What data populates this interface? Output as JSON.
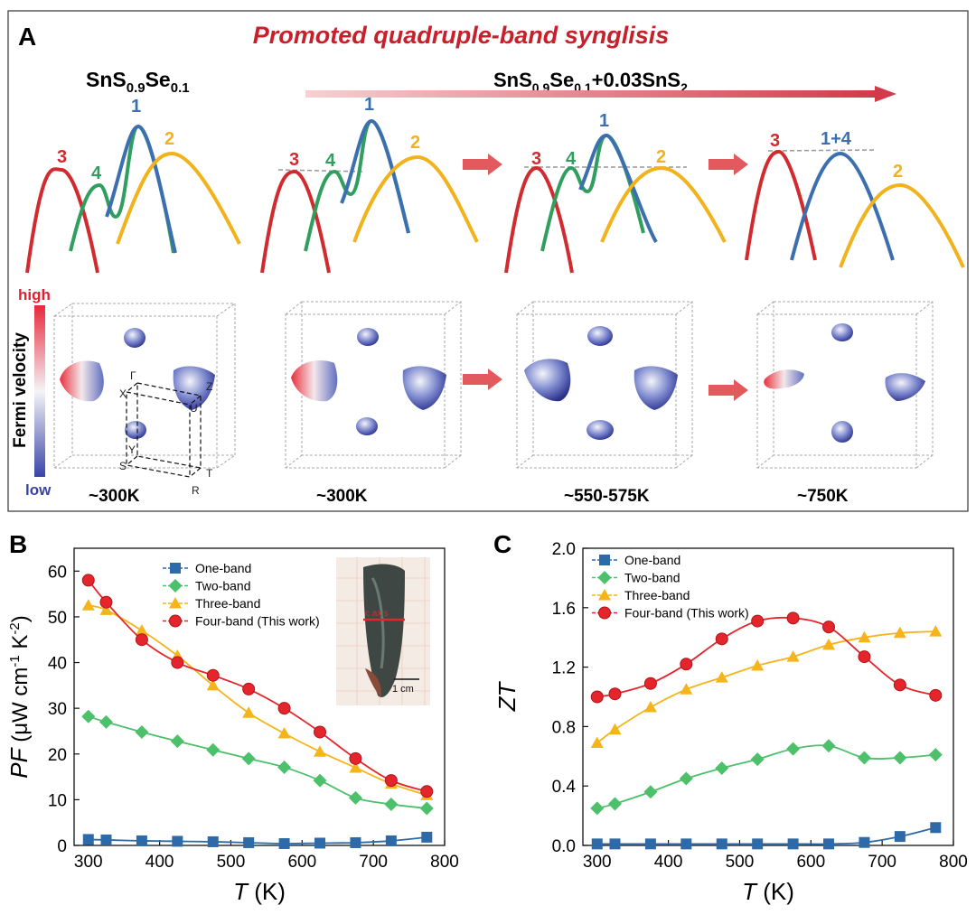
{
  "panel_a": {
    "letter": "A",
    "title": "Promoted quadruple-band synglisis",
    "formula_left": {
      "base": "SnS",
      "sub1": "0.9",
      "mid": "Se",
      "sub2": "0.1"
    },
    "formula_right": {
      "base": "SnS",
      "sub1": "0.9",
      "mid": "Se",
      "sub2": "0.1",
      "tail": "+0.03SnS",
      "sub3": "2"
    },
    "band_labels": {
      "b1": "1",
      "b2": "2",
      "b3": "3",
      "b4": "4",
      "b14": "1+4"
    },
    "colorbar": {
      "label": "Fermi velocity",
      "high": "high",
      "low": "low"
    },
    "bz_labels": {
      "gamma": "Γ",
      "x": "X",
      "z": "Z",
      "u": "U",
      "y": "Y",
      "s": "S",
      "t": "T",
      "r": "R"
    },
    "temps": [
      "~300K",
      "~300K",
      "~550-575K",
      "~750K"
    ],
    "colors": {
      "red": "#d12a2f",
      "green": "#2f9e5e",
      "blue": "#3b6fb0",
      "yellow": "#f2b21b",
      "title": "#c8202a"
    }
  },
  "chart_data": [
    {
      "panel": "B",
      "type": "line",
      "x": [
        300,
        325,
        375,
        425,
        475,
        525,
        575,
        625,
        675,
        725,
        775
      ],
      "series": [
        {
          "name": "One-band",
          "color": "#2f6aa8",
          "marker": "square",
          "values": [
            1.3,
            1.2,
            1.0,
            0.9,
            0.8,
            0.6,
            0.4,
            0.5,
            0.6,
            1.0,
            1.8
          ]
        },
        {
          "name": "Two-band",
          "color": "#4cc06a",
          "marker": "diamond",
          "values": [
            28.2,
            27.0,
            24.8,
            22.8,
            20.9,
            19.0,
            17.1,
            14.2,
            10.4,
            9.0,
            8.1
          ]
        },
        {
          "name": "Three-band",
          "color": "#f4b41a",
          "marker": "triangle",
          "values": [
            52.5,
            51.5,
            47.0,
            41.5,
            35.0,
            29.0,
            24.5,
            20.5,
            17.0,
            13.5,
            11.0
          ]
        },
        {
          "name": "Four-band (This work)",
          "color": "#e4262c",
          "marker": "circle",
          "values": [
            58.0,
            53.2,
            45.0,
            40.0,
            37.2,
            34.2,
            30.0,
            24.8,
            19.0,
            14.2,
            11.8
          ]
        }
      ],
      "xlabel_var": "T",
      "xlabel_unit": " (K)",
      "ylabel_var": "PF",
      "ylabel_unit": " (μW cm",
      "ylabel_exp1": "-1",
      "ylabel_mid": " K",
      "ylabel_exp2": "-2",
      "ylabel_close": ")",
      "xlim": [
        280,
        800
      ],
      "ylim": [
        0,
        65
      ],
      "xticks": [
        300,
        400,
        500,
        600,
        700,
        800
      ],
      "yticks": [
        0,
        10,
        20,
        30,
        40,
        50,
        60
      ],
      "inset": {
        "axis_label": "c axis",
        "scale_label": "1 cm"
      }
    },
    {
      "panel": "C",
      "type": "line",
      "x": [
        300,
        325,
        375,
        425,
        475,
        525,
        575,
        625,
        675,
        725,
        775
      ],
      "series": [
        {
          "name": "One-band",
          "color": "#2f6aa8",
          "marker": "square",
          "values": [
            0.01,
            0.01,
            0.01,
            0.01,
            0.01,
            0.01,
            0.01,
            0.01,
            0.02,
            0.06,
            0.12
          ]
        },
        {
          "name": "Two-band",
          "color": "#4cc06a",
          "marker": "diamond",
          "values": [
            0.25,
            0.28,
            0.36,
            0.45,
            0.52,
            0.58,
            0.65,
            0.67,
            0.59,
            0.59,
            0.61
          ]
        },
        {
          "name": "Three-band",
          "color": "#f4b41a",
          "marker": "triangle",
          "values": [
            0.69,
            0.78,
            0.93,
            1.05,
            1.13,
            1.21,
            1.27,
            1.35,
            1.4,
            1.43,
            1.44
          ]
        },
        {
          "name": "Four-band (This work)",
          "color": "#e4262c",
          "marker": "circle",
          "values": [
            1.0,
            1.02,
            1.09,
            1.22,
            1.39,
            1.51,
            1.53,
            1.47,
            1.27,
            1.08,
            1.01
          ]
        }
      ],
      "xlabel_var": "T",
      "xlabel_unit": " (K)",
      "ylabel_var": "ZT",
      "xlim": [
        280,
        800
      ],
      "ylim": [
        0,
        2.0
      ],
      "xticks": [
        300,
        400,
        500,
        600,
        700,
        800
      ],
      "yticks": [
        0.0,
        0.4,
        0.8,
        1.2,
        1.6,
        2.0
      ]
    }
  ]
}
